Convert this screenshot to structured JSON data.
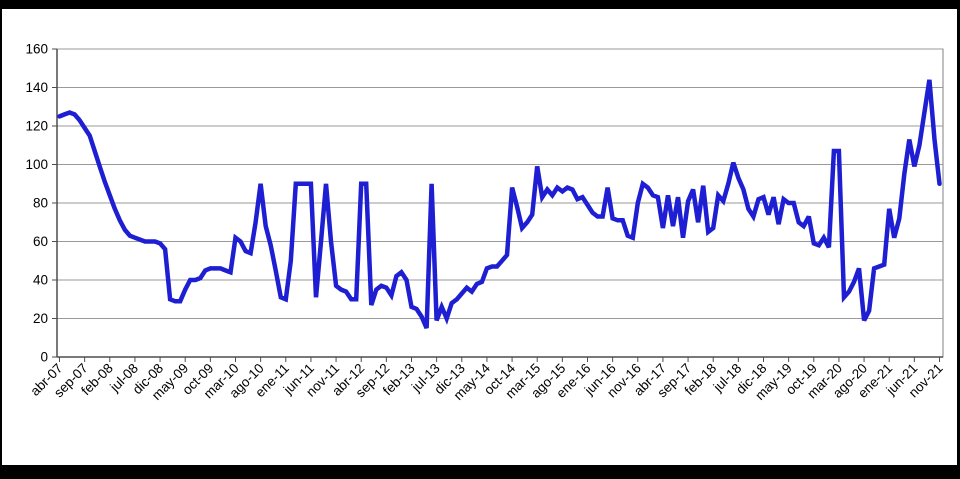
{
  "frame": {
    "background_color": "#000000",
    "panel_color": "#ffffff"
  },
  "chart_data": {
    "type": "line",
    "title": "",
    "xlabel": "",
    "ylabel": "",
    "legend": "none",
    "grid": true,
    "frequency": "monthly",
    "x_start": "abr-07",
    "x_end": "nov-21",
    "x_tick_every": 5,
    "x_tick_labels": [
      "abr-07",
      "sep-07",
      "feb-08",
      "jul-08",
      "dic-08",
      "may-09",
      "oct-09",
      "mar-10",
      "ago-10",
      "ene-11",
      "jun-11",
      "nov-11",
      "abr-12",
      "sep-12",
      "feb-13",
      "jul-13",
      "dic-13",
      "may-14",
      "oct-14",
      "mar-15",
      "ago-15",
      "ene-16",
      "jun-16",
      "nov-16",
      "abr-17",
      "sep-17",
      "feb-18",
      "jul-18",
      "dic-18",
      "may-19",
      "oct-19",
      "mar-20",
      "ago-20",
      "ene-21",
      "jun-21",
      "nov-21"
    ],
    "y_tick_labels": [
      "0",
      "20",
      "40",
      "60",
      "80",
      "100",
      "120",
      "140",
      "160"
    ],
    "ylim": [
      0,
      160
    ],
    "y_tick_step": 20,
    "line_color": "#1e1ed2",
    "gridline_color": "#9a9a9a",
    "axis_color": "#4d4d4d",
    "border_color": "#808080",
    "values": [
      125,
      126,
      127,
      126,
      123,
      119,
      115,
      107,
      99,
      91,
      84,
      77,
      71,
      66,
      63,
      62,
      61,
      60,
      60,
      60,
      59,
      56,
      30,
      29,
      29,
      35,
      40,
      40,
      41,
      45,
      46,
      46,
      46,
      45,
      44,
      62,
      60,
      55,
      54,
      70,
      90,
      68,
      58,
      45,
      31,
      30,
      50,
      90,
      90,
      90,
      90,
      31,
      60,
      90,
      60,
      37,
      35,
      34,
      30,
      30,
      90,
      90,
      27,
      35,
      37,
      36,
      32,
      42,
      44,
      40,
      26,
      25,
      21,
      15,
      90,
      19,
      26,
      20,
      28,
      30,
      33,
      36,
      34,
      38,
      39,
      46,
      47,
      47,
      50,
      53,
      88,
      78,
      67,
      70,
      74,
      99,
      83,
      87,
      84,
      88,
      86,
      88,
      87,
      82,
      83,
      79,
      75,
      73,
      73,
      88,
      72,
      71,
      71,
      63,
      62,
      80,
      90,
      88,
      84,
      83,
      67,
      84,
      68,
      83,
      62,
      81,
      87,
      70,
      89,
      65,
      67,
      84,
      81,
      90,
      101,
      93,
      87,
      77,
      73,
      82,
      83,
      74,
      83,
      69,
      82,
      80,
      80,
      70,
      68,
      73,
      59,
      58,
      62,
      57,
      107,
      107,
      31,
      34,
      39,
      46,
      19,
      24,
      46,
      47,
      48,
      77,
      62,
      72,
      95,
      113,
      99,
      110,
      127,
      144,
      113,
      90
    ]
  }
}
